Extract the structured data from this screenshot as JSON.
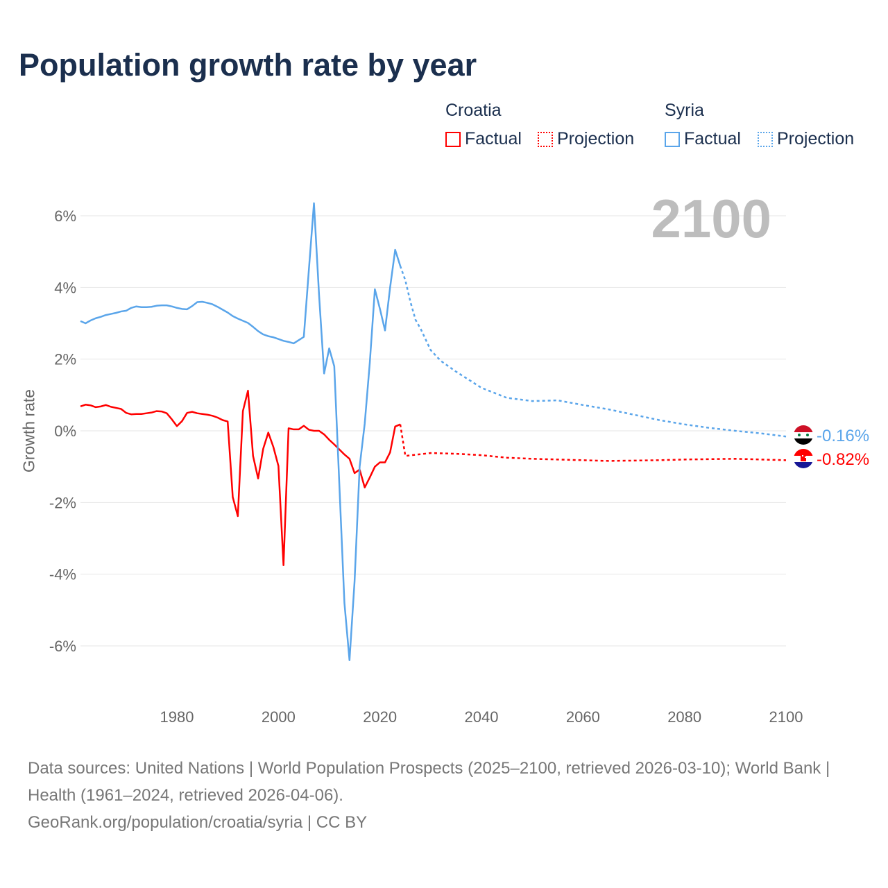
{
  "title": "Population growth rate by year",
  "current_year": "2100",
  "legend": {
    "groups": [
      {
        "name": "Croatia",
        "color": "#ff0000",
        "factual": "Factual",
        "projection": "Projection"
      },
      {
        "name": "Syria",
        "color": "#5aa5ea",
        "factual": "Factual",
        "projection": "Projection"
      }
    ]
  },
  "footer": {
    "sources": "Data sources: United Nations | World Population Prospects (2025–2100, retrieved 2026-03-10); World Bank | Health (1961–2024, retrieved 2026-04-06).",
    "link": "GeoRank.org/population/croatia/syria | CC BY"
  },
  "chart_data": {
    "type": "line",
    "title": "Population growth rate by year",
    "xlabel": "",
    "ylabel": "Growth rate",
    "xlim": [
      1961,
      2100
    ],
    "ylim": [
      -7,
      7
    ],
    "xticks": [
      1980,
      2000,
      2020,
      2040,
      2060,
      2080,
      2100
    ],
    "yticks": [
      6,
      4,
      2,
      0,
      -2,
      -4,
      -6
    ],
    "ytick_labels": [
      "6%",
      "4%",
      "2%",
      "0%",
      "-2%",
      "-4%",
      "-6%"
    ],
    "grid": true,
    "series": [
      {
        "name": "Croatia",
        "color": "#ff0000",
        "end_label": "-0.82%",
        "factual": {
          "x_start": 1961,
          "values": [
            0.68,
            0.73,
            0.71,
            0.66,
            0.68,
            0.72,
            0.67,
            0.64,
            0.61,
            0.5,
            0.46,
            0.47,
            0.47,
            0.49,
            0.51,
            0.55,
            0.54,
            0.49,
            0.32,
            0.13,
            0.27,
            0.5,
            0.53,
            0.49,
            0.47,
            0.45,
            0.42,
            0.37,
            0.3,
            0.26,
            -1.85,
            -2.38,
            0.55,
            1.12,
            -0.7,
            -1.33,
            -0.5,
            -0.05,
            -0.45,
            -0.98,
            -3.75,
            0.07,
            0.04,
            0.04,
            0.14,
            0.03,
            0.0,
            0.0,
            -0.1,
            -0.25,
            -0.38,
            -0.52,
            -0.66,
            -0.78,
            -1.18,
            -1.08,
            -1.58,
            -1.3,
            -1.0,
            -0.88,
            -0.88,
            -0.6,
            0.12,
            0.18
          ]
        },
        "projection": {
          "x": [
            2024,
            2025,
            2030,
            2035,
            2040,
            2045,
            2050,
            2055,
            2060,
            2065,
            2070,
            2075,
            2080,
            2085,
            2090,
            2095,
            2100
          ],
          "values": [
            0.18,
            -0.7,
            -0.62,
            -0.64,
            -0.68,
            -0.75,
            -0.78,
            -0.8,
            -0.82,
            -0.84,
            -0.83,
            -0.82,
            -0.8,
            -0.79,
            -0.78,
            -0.8,
            -0.82
          ]
        }
      },
      {
        "name": "Syria",
        "color": "#5aa5ea",
        "end_label": "-0.16%",
        "factual": {
          "x_start": 1961,
          "values": [
            3.06,
            3.0,
            3.08,
            3.14,
            3.18,
            3.23,
            3.26,
            3.29,
            3.33,
            3.35,
            3.43,
            3.47,
            3.45,
            3.45,
            3.46,
            3.49,
            3.5,
            3.5,
            3.47,
            3.43,
            3.4,
            3.39,
            3.48,
            3.59,
            3.6,
            3.57,
            3.53,
            3.46,
            3.38,
            3.3,
            3.2,
            3.13,
            3.07,
            3.01,
            2.9,
            2.78,
            2.69,
            2.64,
            2.61,
            2.56,
            2.51,
            2.48,
            2.44,
            2.53,
            2.62,
            4.5,
            6.35,
            3.8,
            1.6,
            2.3,
            1.8,
            -1.5,
            -4.8,
            -6.4,
            -4.2,
            -1.0,
            0.2,
            1.9,
            3.95,
            3.4,
            2.8,
            4.0,
            5.05,
            4.6
          ]
        },
        "projection": {
          "x": [
            2024,
            2025,
            2026,
            2027,
            2028,
            2030,
            2032,
            2035,
            2037,
            2040,
            2045,
            2050,
            2055,
            2060,
            2065,
            2070,
            2075,
            2080,
            2085,
            2090,
            2095,
            2100
          ],
          "values": [
            4.6,
            4.2,
            3.6,
            3.1,
            2.85,
            2.25,
            1.95,
            1.65,
            1.47,
            1.2,
            0.92,
            0.83,
            0.85,
            0.72,
            0.6,
            0.45,
            0.3,
            0.18,
            0.08,
            0.0,
            -0.07,
            -0.16
          ]
        }
      }
    ]
  }
}
